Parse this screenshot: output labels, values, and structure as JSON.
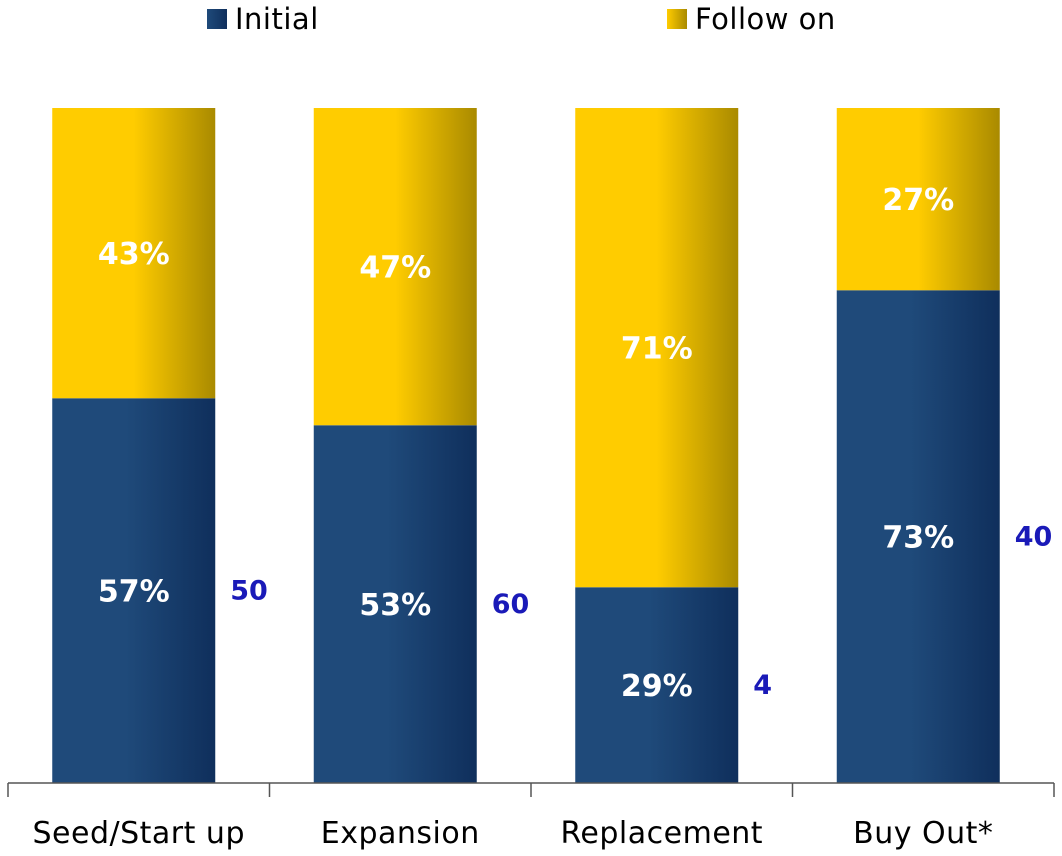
{
  "chart_data": {
    "type": "bar",
    "stacked": true,
    "percent_stacked": true,
    "categories": [
      "Seed/Start up",
      "Expansion",
      "Replacement",
      "Buy Out*"
    ],
    "series": [
      {
        "name": "Initial",
        "values": [
          57,
          53,
          29,
          73
        ],
        "labels": [
          "57%",
          "53%",
          "29%",
          "73%"
        ]
      },
      {
        "name": "Follow on",
        "values": [
          43,
          47,
          71,
          27
        ],
        "labels": [
          "43%",
          "47%",
          "71%",
          "27%"
        ]
      }
    ],
    "annotations": [
      "50",
      "60",
      "4",
      "40"
    ],
    "ylim": [
      0,
      100
    ],
    "legend_position": "top",
    "grid": false
  },
  "colors": {
    "initial_dark": "#0f2f5c",
    "initial_light": "#1f4a7a",
    "follow_dark": "#a98a00",
    "follow_light": "#ffcc00",
    "bar_label": "#ffffff",
    "annotation": "#1a1ab8",
    "axis": "#555555"
  }
}
